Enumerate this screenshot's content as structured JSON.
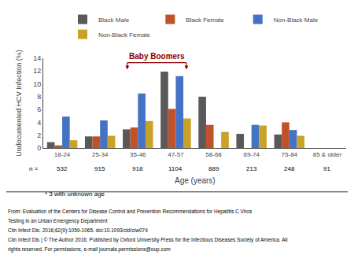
{
  "chart_data": {
    "type": "bar",
    "categories": [
      "18-24",
      "25-34",
      "35-46",
      "47-57",
      "58-68",
      "69-74",
      "75-84",
      "85 & older"
    ],
    "series": [
      {
        "name": "Black Male",
        "color": "#595959",
        "values": [
          0.9,
          1.8,
          2.9,
          11.9,
          8.0,
          2.2,
          2.1,
          0.0
        ]
      },
      {
        "name": "Black Female",
        "color": "#C0522A",
        "values": [
          0.4,
          1.8,
          3.2,
          6.1,
          3.6,
          0.0,
          4.0,
          0.0
        ]
      },
      {
        "name": "Non-Black Male",
        "color": "#4472C4",
        "values": [
          4.9,
          4.3,
          8.5,
          11.2,
          0.0,
          3.6,
          2.8,
          0.0
        ]
      },
      {
        "name": "Non-Black Female",
        "color": "#C9A227",
        "values": [
          1.2,
          1.9,
          4.2,
          4.6,
          2.5,
          3.5,
          1.9,
          0.0
        ]
      }
    ],
    "xlabel": "Age (years)",
    "ylabel": "Undocumented HCV Infection (%)",
    "ylim": [
      0,
      14
    ],
    "yticks": [
      0,
      2,
      4,
      6,
      8,
      10,
      12,
      14
    ],
    "grid": false,
    "legend": "top",
    "sample_sizes": {
      "label": "n =",
      "values": [
        532,
        915,
        918,
        1104,
        889,
        213,
        248,
        91
      ]
    },
    "footnote": "* 3 with unknown age",
    "annotations": [
      {
        "text": "Baby Boomers",
        "categories": [
          "35-46",
          "47-57"
        ],
        "color": "#8B0000"
      }
    ],
    "caption": [
      "From: Evaluation of the Centers for Disease Control and Prevention Recommendations for Hepatitis C Virus",
      "Testing in an Urban Emergency Department",
      "Clin Infect Dis. 2016;62(9):1059-1065. doi:10.1093/cid/ciw074",
      "Clin Infect Dis | © The Author 2016. Published by Oxford University Press for the Infectious Diseases Society of America. All",
      "rights reserved. For permissions, e-mail journals.permissions@oup.com"
    ]
  }
}
